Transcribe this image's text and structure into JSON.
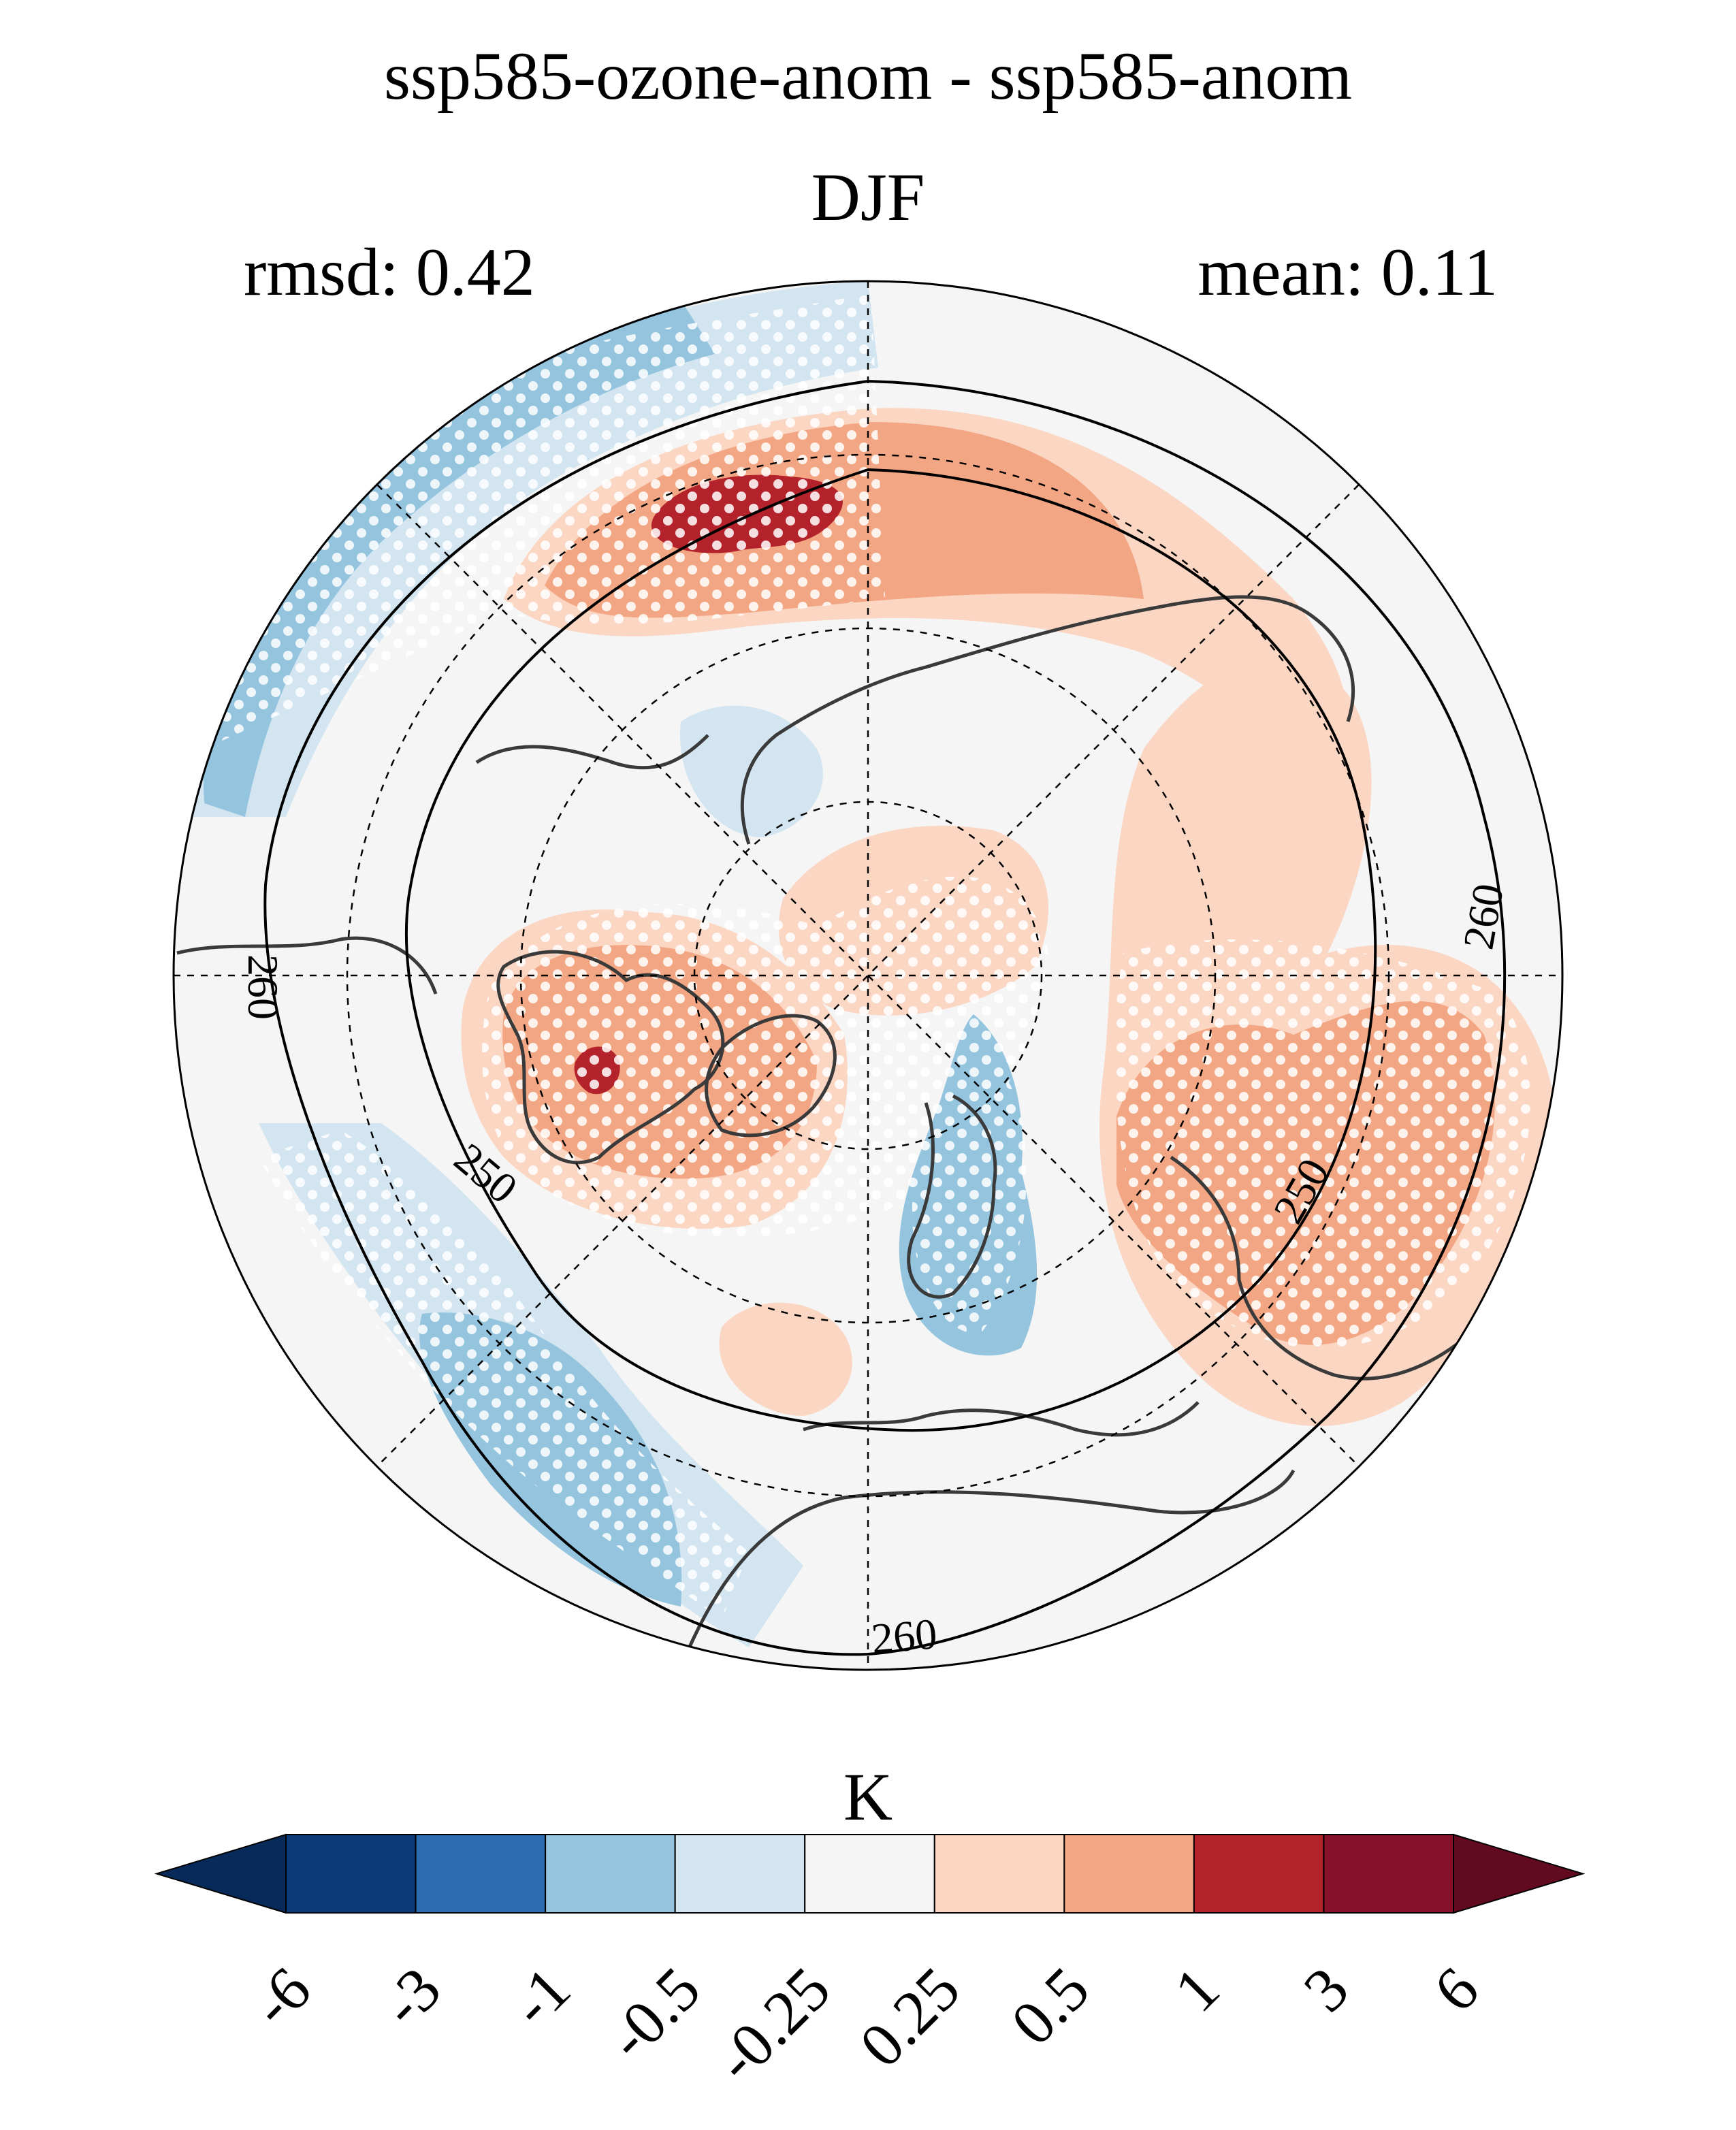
{
  "title": "ssp585-ozone-anom - ssp585-anom",
  "season": "DJF",
  "stats": {
    "rmsd_label": "rmsd: 0.42",
    "mean_label": "mean: 0.11"
  },
  "map": {
    "projection": "north polar stereographic",
    "gridlines": "dashed",
    "contour_labels": [
      "260",
      "260",
      "250",
      "250",
      "260",
      "260"
    ],
    "stippling": "white dots"
  },
  "colorbar": {
    "unit": "K",
    "extend": "both",
    "ticks": [
      "-6",
      "-3",
      "-1",
      "-0.5",
      "-0.25",
      "0.25",
      "0.5",
      "1",
      "3",
      "6"
    ],
    "colors": [
      "#072a5a",
      "#0a3a78",
      "#2b6cb0",
      "#94c4de",
      "#d3e5f0",
      "#f5f5f5",
      "#fbd6c3",
      "#f2a683",
      "#b4222c",
      "#87102a",
      "#620a20"
    ]
  },
  "colors": {
    "strong_blue": "#94c4de",
    "light_blue": "#d3e5f0",
    "neutral": "#f5f5f5",
    "light_red": "#fbd6c3",
    "medium_red": "#f2a683",
    "strong_red": "#b4222c"
  }
}
